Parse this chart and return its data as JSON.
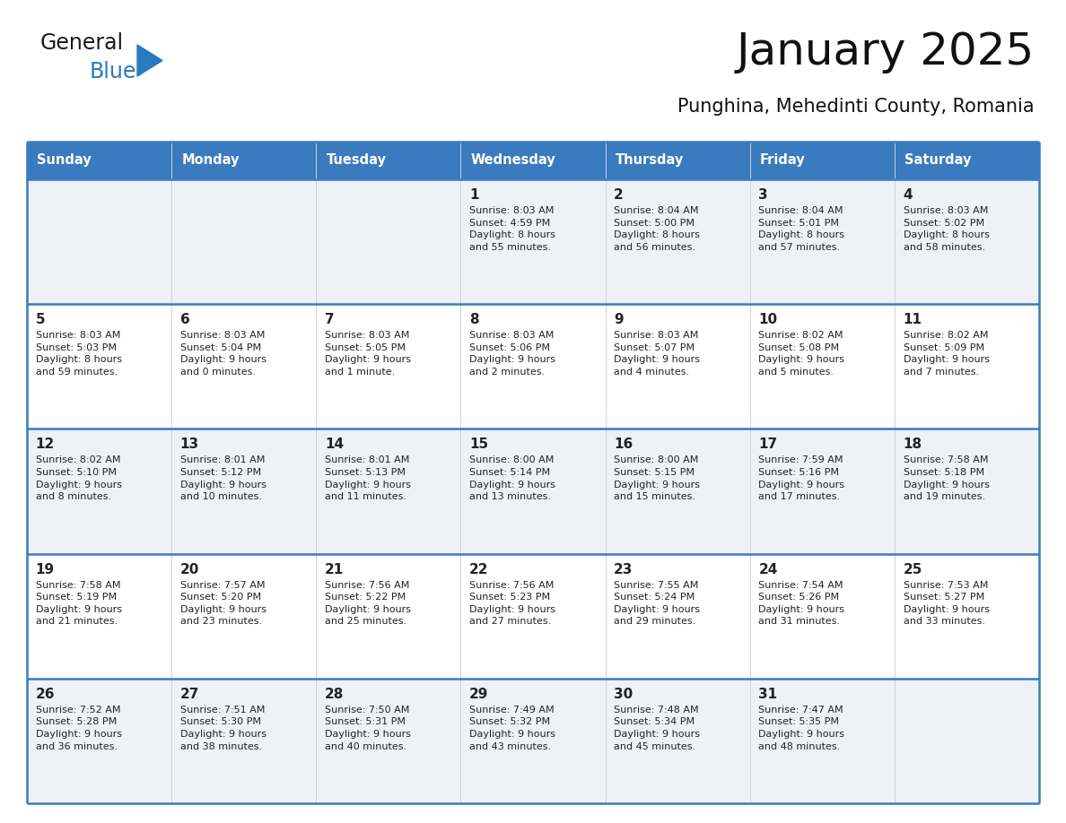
{
  "title": "January 2025",
  "subtitle": "Punghina, Mehedinti County, Romania",
  "header_bg": "#3a7abf",
  "header_text_color": "#ffffff",
  "row_bg_odd": "#eef2f7",
  "row_bg_even": "#ffffff",
  "border_color": "#3a7abf",
  "text_color": "#222222",
  "days_of_week": [
    "Sunday",
    "Monday",
    "Tuesday",
    "Wednesday",
    "Thursday",
    "Friday",
    "Saturday"
  ],
  "calendar_data": [
    [
      {
        "day": "",
        "info": ""
      },
      {
        "day": "",
        "info": ""
      },
      {
        "day": "",
        "info": ""
      },
      {
        "day": "1",
        "info": "Sunrise: 8:03 AM\nSunset: 4:59 PM\nDaylight: 8 hours\nand 55 minutes."
      },
      {
        "day": "2",
        "info": "Sunrise: 8:04 AM\nSunset: 5:00 PM\nDaylight: 8 hours\nand 56 minutes."
      },
      {
        "day": "3",
        "info": "Sunrise: 8:04 AM\nSunset: 5:01 PM\nDaylight: 8 hours\nand 57 minutes."
      },
      {
        "day": "4",
        "info": "Sunrise: 8:03 AM\nSunset: 5:02 PM\nDaylight: 8 hours\nand 58 minutes."
      }
    ],
    [
      {
        "day": "5",
        "info": "Sunrise: 8:03 AM\nSunset: 5:03 PM\nDaylight: 8 hours\nand 59 minutes."
      },
      {
        "day": "6",
        "info": "Sunrise: 8:03 AM\nSunset: 5:04 PM\nDaylight: 9 hours\nand 0 minutes."
      },
      {
        "day": "7",
        "info": "Sunrise: 8:03 AM\nSunset: 5:05 PM\nDaylight: 9 hours\nand 1 minute."
      },
      {
        "day": "8",
        "info": "Sunrise: 8:03 AM\nSunset: 5:06 PM\nDaylight: 9 hours\nand 2 minutes."
      },
      {
        "day": "9",
        "info": "Sunrise: 8:03 AM\nSunset: 5:07 PM\nDaylight: 9 hours\nand 4 minutes."
      },
      {
        "day": "10",
        "info": "Sunrise: 8:02 AM\nSunset: 5:08 PM\nDaylight: 9 hours\nand 5 minutes."
      },
      {
        "day": "11",
        "info": "Sunrise: 8:02 AM\nSunset: 5:09 PM\nDaylight: 9 hours\nand 7 minutes."
      }
    ],
    [
      {
        "day": "12",
        "info": "Sunrise: 8:02 AM\nSunset: 5:10 PM\nDaylight: 9 hours\nand 8 minutes."
      },
      {
        "day": "13",
        "info": "Sunrise: 8:01 AM\nSunset: 5:12 PM\nDaylight: 9 hours\nand 10 minutes."
      },
      {
        "day": "14",
        "info": "Sunrise: 8:01 AM\nSunset: 5:13 PM\nDaylight: 9 hours\nand 11 minutes."
      },
      {
        "day": "15",
        "info": "Sunrise: 8:00 AM\nSunset: 5:14 PM\nDaylight: 9 hours\nand 13 minutes."
      },
      {
        "day": "16",
        "info": "Sunrise: 8:00 AM\nSunset: 5:15 PM\nDaylight: 9 hours\nand 15 minutes."
      },
      {
        "day": "17",
        "info": "Sunrise: 7:59 AM\nSunset: 5:16 PM\nDaylight: 9 hours\nand 17 minutes."
      },
      {
        "day": "18",
        "info": "Sunrise: 7:58 AM\nSunset: 5:18 PM\nDaylight: 9 hours\nand 19 minutes."
      }
    ],
    [
      {
        "day": "19",
        "info": "Sunrise: 7:58 AM\nSunset: 5:19 PM\nDaylight: 9 hours\nand 21 minutes."
      },
      {
        "day": "20",
        "info": "Sunrise: 7:57 AM\nSunset: 5:20 PM\nDaylight: 9 hours\nand 23 minutes."
      },
      {
        "day": "21",
        "info": "Sunrise: 7:56 AM\nSunset: 5:22 PM\nDaylight: 9 hours\nand 25 minutes."
      },
      {
        "day": "22",
        "info": "Sunrise: 7:56 AM\nSunset: 5:23 PM\nDaylight: 9 hours\nand 27 minutes."
      },
      {
        "day": "23",
        "info": "Sunrise: 7:55 AM\nSunset: 5:24 PM\nDaylight: 9 hours\nand 29 minutes."
      },
      {
        "day": "24",
        "info": "Sunrise: 7:54 AM\nSunset: 5:26 PM\nDaylight: 9 hours\nand 31 minutes."
      },
      {
        "day": "25",
        "info": "Sunrise: 7:53 AM\nSunset: 5:27 PM\nDaylight: 9 hours\nand 33 minutes."
      }
    ],
    [
      {
        "day": "26",
        "info": "Sunrise: 7:52 AM\nSunset: 5:28 PM\nDaylight: 9 hours\nand 36 minutes."
      },
      {
        "day": "27",
        "info": "Sunrise: 7:51 AM\nSunset: 5:30 PM\nDaylight: 9 hours\nand 38 minutes."
      },
      {
        "day": "28",
        "info": "Sunrise: 7:50 AM\nSunset: 5:31 PM\nDaylight: 9 hours\nand 40 minutes."
      },
      {
        "day": "29",
        "info": "Sunrise: 7:49 AM\nSunset: 5:32 PM\nDaylight: 9 hours\nand 43 minutes."
      },
      {
        "day": "30",
        "info": "Sunrise: 7:48 AM\nSunset: 5:34 PM\nDaylight: 9 hours\nand 45 minutes."
      },
      {
        "day": "31",
        "info": "Sunrise: 7:47 AM\nSunset: 5:35 PM\nDaylight: 9 hours\nand 48 minutes."
      },
      {
        "day": "",
        "info": ""
      }
    ]
  ],
  "logo_general_color": "#1a1a1a",
  "logo_blue_color": "#2a7abf",
  "logo_triangle_color": "#2a7abf"
}
